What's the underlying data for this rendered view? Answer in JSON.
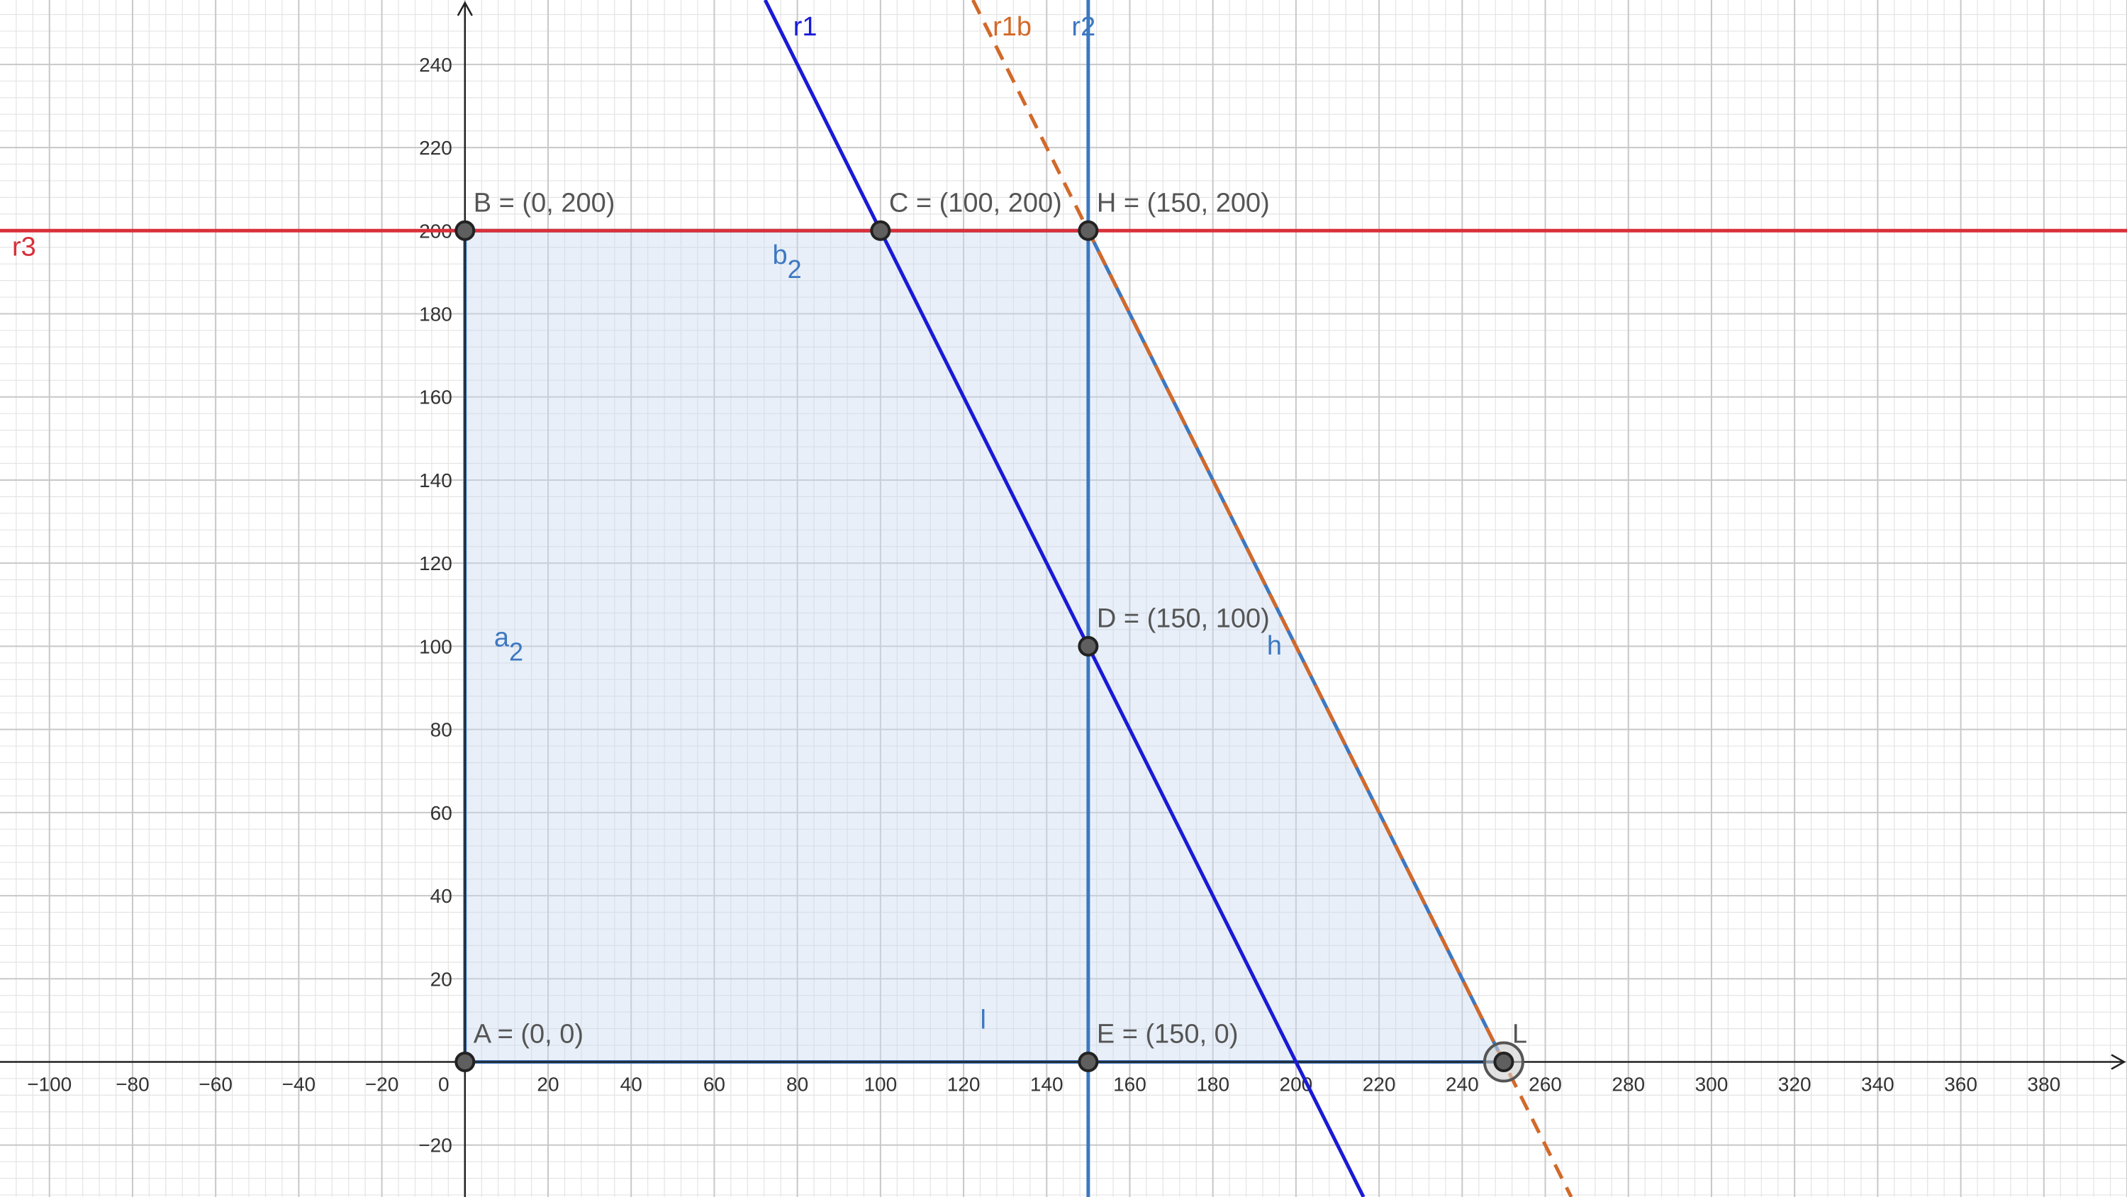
{
  "view": {
    "xmin": -111.9,
    "xmax": 400,
    "ymin": -32.5,
    "ymax": 255.5
  },
  "grid": {
    "minor_step": 4,
    "major_step": 20,
    "minor_color": "#e4e4e4",
    "major_color": "#c8c8c8",
    "axis_color": "#222222"
  },
  "axes": {
    "x_ticks": [
      "-100",
      "-80",
      "-60",
      "-40",
      "-20",
      "0",
      "20",
      "40",
      "60",
      "80",
      "100",
      "120",
      "140",
      "160",
      "180",
      "200",
      "220",
      "240",
      "260",
      "280",
      "300",
      "320",
      "340",
      "360",
      "380"
    ],
    "y_ticks": [
      "-20",
      "20",
      "40",
      "60",
      "80",
      "100",
      "120",
      "140",
      "160",
      "180",
      "200",
      "220",
      "240"
    ]
  },
  "region": {
    "vertices": [
      [
        0,
        0
      ],
      [
        0,
        200
      ],
      [
        150,
        200
      ],
      [
        250,
        0
      ]
    ],
    "fill": "#c8daf0",
    "fill_opacity": 0.42,
    "edge_color": "#3d78c0"
  },
  "lines": [
    {
      "id": "r1",
      "label": "r1",
      "p1": [
        200,
        0
      ],
      "p2": [
        150,
        100
      ],
      "color": "#1a1ad6",
      "dashed": false,
      "label_at": [
        79,
        247
      ]
    },
    {
      "id": "r1b",
      "label": "r1b",
      "p1": [
        250,
        0
      ],
      "p2": [
        200,
        100
      ],
      "color": "#d2692a",
      "dashed": true,
      "label_at": [
        127,
        247
      ]
    },
    {
      "id": "r2",
      "label": "r2",
      "vertical_x": 150,
      "color": "#3d78c0",
      "dashed": false,
      "label_at": [
        146,
        247
      ]
    },
    {
      "id": "r3",
      "label": "r3",
      "horizontal_y": 200,
      "color": "#d8303a",
      "dashed": false,
      "label_at": [
        -109,
        194
      ]
    }
  ],
  "segment_labels": [
    {
      "id": "b2",
      "main": "b",
      "sub": "2",
      "at": [
        74,
        192
      ],
      "color": "#3d78c0"
    },
    {
      "id": "a2",
      "main": "a",
      "sub": "2",
      "at": [
        7,
        100
      ],
      "color": "#3d78c0"
    },
    {
      "id": "h",
      "main": "h",
      "sub": "",
      "at": [
        193,
        98
      ],
      "color": "#3d78c0"
    },
    {
      "id": "l",
      "main": "l",
      "sub": "",
      "at": [
        124,
        8
      ],
      "color": "#3d78c0"
    }
  ],
  "points": [
    {
      "id": "A",
      "x": 0,
      "y": 0,
      "label": "A = (0, 0)"
    },
    {
      "id": "B",
      "x": 0,
      "y": 200,
      "label": "B = (0, 200)"
    },
    {
      "id": "C",
      "x": 100,
      "y": 200,
      "label": "C = (100, 200)"
    },
    {
      "id": "H",
      "x": 150,
      "y": 200,
      "label": "H = (150, 200)"
    },
    {
      "id": "D",
      "x": 150,
      "y": 100,
      "label": "D = (150, 100)"
    },
    {
      "id": "E",
      "x": 150,
      "y": 0,
      "label": "E = (150, 0)"
    },
    {
      "id": "L",
      "x": 250,
      "y": 0,
      "label": "L",
      "highlighted": true
    }
  ],
  "colors": {
    "point_fill": "#5f5f5f",
    "point_stroke": "#222222"
  }
}
